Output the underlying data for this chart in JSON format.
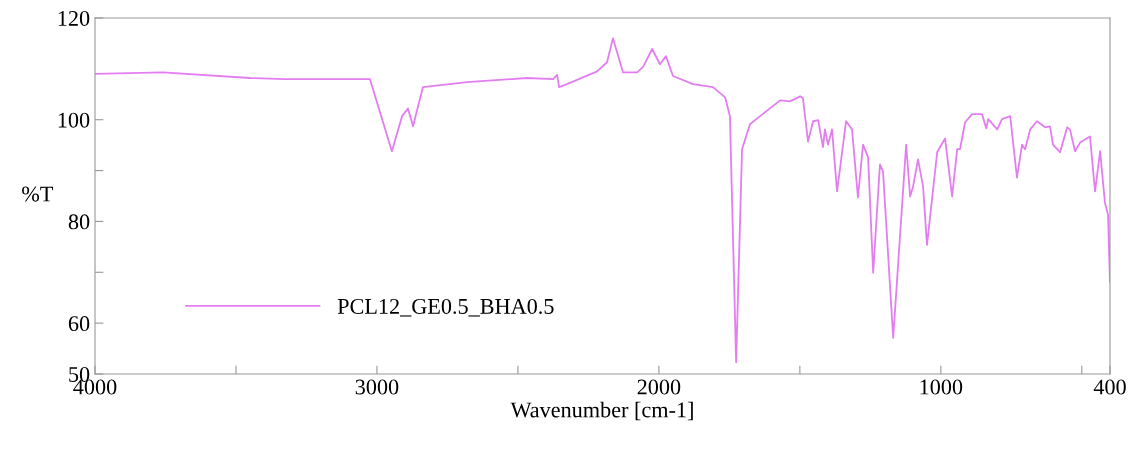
{
  "chart_data": {
    "type": "line",
    "xlabel": "Wavenumber [cm-1]",
    "ylabel": "%T",
    "xlim": [
      4000,
      400
    ],
    "ylim": [
      50,
      120
    ],
    "xticks": [
      4000,
      {
        "value": 3500,
        "label": null
      },
      3000,
      {
        "value": 2500,
        "label": null
      },
      2000,
      {
        "value": 1500,
        "label": null
      },
      1000,
      {
        "value": 500,
        "label": null
      },
      400
    ],
    "yticks": [
      50,
      60,
      {
        "value": 70,
        "label": null
      },
      80,
      {
        "value": 90,
        "label": null
      },
      100,
      120
    ],
    "grid": false,
    "legend": "bottom left",
    "marker": "none",
    "line_style": "solid",
    "series": [
      {
        "name": "PCL12_GE0.5_BHA0.5",
        "color": "#e37ef0",
        "x": [
          4000,
          3759,
          3450,
          3326,
          3025,
          2947,
          2911,
          2890,
          2872,
          2837,
          2680,
          2468,
          2375,
          2361,
          2354,
          2326,
          2219,
          2184,
          2163,
          2127,
          2077,
          2056,
          2024,
          1996,
          1975,
          1950,
          1879,
          1808,
          1765,
          1748,
          1726,
          1705,
          1677,
          1641,
          1570,
          1535,
          1499,
          1489,
          1471,
          1453,
          1435,
          1418,
          1411,
          1400,
          1386,
          1368,
          1336,
          1315,
          1294,
          1276,
          1258,
          1240,
          1216,
          1205,
          1169,
          1123,
          1109,
          1099,
          1081,
          1063,
          1049,
          1013,
          985,
          960,
          942,
          932,
          914,
          889,
          854,
          839,
          832,
          800,
          783,
          754,
          730,
          712,
          701,
          683,
          659,
          630,
          613,
          602,
          577,
          552,
          542,
          524,
          506,
          471,
          453,
          435,
          418,
          407,
          400
        ],
        "values": [
          109.0,
          109.3,
          108.2,
          108.0,
          108.0,
          93.8,
          100.7,
          102.2,
          98.7,
          106.4,
          107.4,
          108.2,
          108.0,
          108.8,
          106.4,
          107.0,
          109.5,
          111.3,
          116.0,
          109.3,
          109.3,
          110.4,
          113.9,
          110.9,
          112.5,
          108.6,
          107.0,
          106.4,
          104.4,
          100.7,
          52.3,
          94.2,
          99.1,
          100.7,
          103.8,
          103.6,
          104.6,
          104.2,
          95.7,
          99.7,
          99.9,
          94.6,
          98.1,
          95.1,
          98.1,
          85.9,
          99.7,
          98.1,
          84.7,
          95.1,
          92.6,
          69.9,
          91.2,
          89.8,
          57.1,
          95.1,
          84.9,
          86.7,
          92.2,
          86.9,
          75.4,
          93.6,
          96.3,
          84.9,
          94.2,
          94.2,
          99.5,
          101.1,
          101.1,
          98.3,
          100.1,
          98.1,
          100.1,
          100.7,
          88.6,
          95.1,
          94.2,
          98.1,
          99.7,
          98.5,
          98.7,
          95.1,
          93.6,
          98.5,
          98.1,
          93.8,
          95.5,
          96.7,
          85.9,
          93.8,
          83.7,
          81.3,
          68.1
        ]
      }
    ]
  }
}
